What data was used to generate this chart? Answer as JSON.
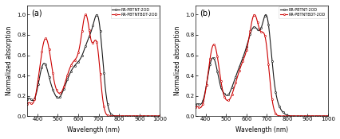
{
  "panel_a_label": "(a)",
  "panel_b_label": "(b)",
  "legend_label_1": "RR-PBTNT-2OD",
  "legend_label_2": "RR-PBTNTBDT-2OD",
  "xlabel": "Wavelength (nm)",
  "ylabel": "Normalized absorption",
  "xlim": [
    350,
    1000
  ],
  "ylim": [
    0.0,
    1.09
  ],
  "yticks": [
    0.0,
    0.2,
    0.4,
    0.6,
    0.8,
    1.0
  ],
  "xticks": [
    400,
    500,
    600,
    700,
    800,
    900,
    1000
  ],
  "color_black": "#1a1a1a",
  "color_red": "#cc0000"
}
